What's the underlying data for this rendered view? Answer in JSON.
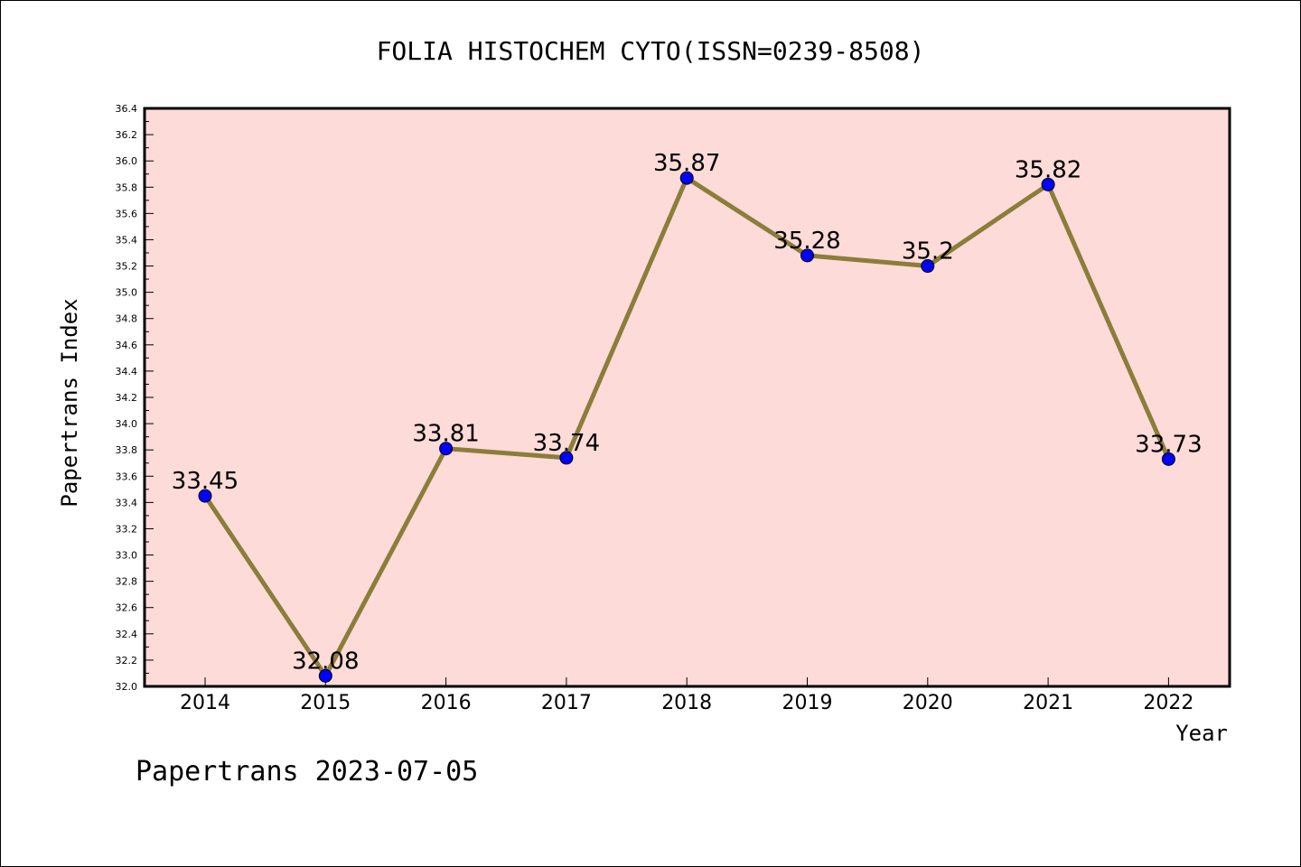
{
  "chart_data": {
    "type": "line",
    "title": "FOLIA HISTOCHEM CYTO(ISSN=0239-8508)",
    "xlabel": "Year",
    "ylabel": "Papertrans Index",
    "x": [
      "2014",
      "2015",
      "2016",
      "2017",
      "2018",
      "2019",
      "2020",
      "2021",
      "2022"
    ],
    "values": [
      33.45,
      32.08,
      33.81,
      33.74,
      35.87,
      35.28,
      35.2,
      35.82,
      33.73
    ],
    "data_labels": [
      "33.45",
      "32.08",
      "33.81",
      "33.74",
      "35.87",
      "35.28",
      "35.2",
      "35.82",
      "33.73"
    ],
    "ylim": [
      32.0,
      36.4
    ],
    "y_ticks": [
      "32.0",
      "32.2",
      "32.4",
      "32.6",
      "32.8",
      "33.0",
      "33.2",
      "33.4",
      "33.6",
      "33.8",
      "34.0",
      "34.2",
      "34.4",
      "34.6",
      "34.8",
      "35.0",
      "35.2",
      "35.4",
      "35.6",
      "35.8",
      "36.0",
      "36.2",
      "36.4"
    ],
    "grid": false,
    "colors": {
      "plot_background": "#fddbd8",
      "line": "#8b7d3a",
      "marker": "#0000ff"
    }
  },
  "footer": "Papertrans 2023-07-05"
}
